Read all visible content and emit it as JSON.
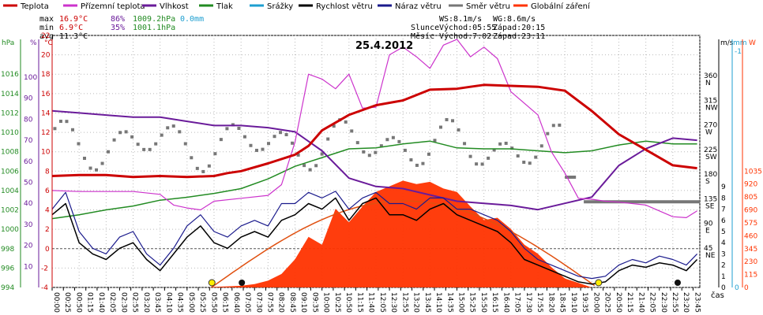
{
  "chart_data": {
    "type": "line",
    "title": "25.4.2012",
    "legend": [
      {
        "name": "Teplota",
        "color": "#cc0000"
      },
      {
        "name": "Přízemní teplota",
        "color": "#cc33cc"
      },
      {
        "name": "Vlhkost",
        "color": "#6a1b9a"
      },
      {
        "name": "Tlak",
        "color": "#228b22"
      },
      {
        "name": "Srážky",
        "color": "#1e9fd0"
      },
      {
        "name": "Rychlost větru",
        "color": "#000000"
      },
      {
        "name": "Náraz větru",
        "color": "#1a1a8c"
      },
      {
        "name": "Směr větru",
        "color": "#777777"
      },
      {
        "name": "Globální záření",
        "color": "#ff3300"
      }
    ],
    "stats": {
      "max_label": "max",
      "min_label": "min",
      "avg_label": "avg",
      "max_t": "16.9°C",
      "max_h": "86%",
      "max_p": "1009.2hPa",
      "max_r": "0.0mm",
      "min_t": "6.9°C",
      "min_h": "35%",
      "min_p": "1001.1hPa",
      "avg_t": "11.3°C"
    },
    "info": {
      "ws": "WS:8.1m/s",
      "wg": "WG:8.6m/s",
      "sun_label": "Slunce",
      "sunrise": "Východ:05:55",
      "sunset": "Západ:20:15",
      "moon_label": "Měsíc",
      "moonrise": "Východ:7:02",
      "moonset": "Západ:23:11"
    },
    "axes": {
      "hPa_label": "hPa",
      "pct_label": "%",
      "c_label": "°C",
      "ms_label": "m/s",
      "mm_label": "mm",
      "w_label": "W",
      "x_label": "čas",
      "hpa_ticks": [
        994,
        996,
        998,
        1000,
        1002,
        1004,
        1006,
        1008,
        1010,
        1012,
        1014,
        1016
      ],
      "pct_ticks": [
        10,
        20,
        30,
        40,
        50,
        60,
        70,
        80,
        90,
        100
      ],
      "c_ticks": [
        -4,
        -2,
        0,
        2,
        4,
        6,
        8,
        10,
        12,
        14,
        16,
        18,
        20,
        22
      ],
      "dir_ticks": [
        {
          "deg": "360",
          "lbl": "N"
        },
        {
          "deg": "315",
          "lbl": "NW"
        },
        {
          "deg": "270",
          "lbl": "W"
        },
        {
          "deg": "225",
          "lbl": "SW"
        },
        {
          "deg": "180",
          "lbl": "S"
        },
        {
          "deg": "135",
          "lbl": "SE"
        },
        {
          "deg": "90",
          "lbl": "E"
        },
        {
          "deg": "45",
          "lbl": "NE"
        }
      ],
      "ms_ticks": [
        0,
        1,
        2,
        3,
        4,
        5,
        6,
        7,
        8,
        9
      ],
      "mm_ticks": [
        "0",
        "-1"
      ],
      "w_ticks": [
        0,
        115,
        230,
        345,
        460,
        575,
        690,
        805,
        920,
        1035
      ],
      "x_ticks": [
        "00:00",
        "00:25",
        "00:50",
        "01:15",
        "01:40",
        "02:05",
        "02:30",
        "02:55",
        "03:20",
        "03:45",
        "04:10",
        "04:35",
        "05:00",
        "05:25",
        "05:50",
        "06:15",
        "06:40",
        "07:05",
        "07:30",
        "07:55",
        "08:20",
        "08:45",
        "09:10",
        "09:35",
        "10:00",
        "10:25",
        "10:50",
        "11:15",
        "11:40",
        "12:05",
        "12:30",
        "12:55",
        "13:20",
        "13:45",
        "14:10",
        "14:35",
        "15:00",
        "15:25",
        "15:50",
        "16:15",
        "16:40",
        "17:05",
        "17:30",
        "17:55",
        "18:20",
        "18:45",
        "19:10",
        "19:35",
        "20:00",
        "20:25",
        "20:50",
        "21:15",
        "21:40",
        "22:05",
        "22:30",
        "22:55",
        "23:20",
        "23:45"
      ]
    },
    "series": [
      {
        "name": "Teplota",
        "unit": "°C",
        "x": [
          0,
          1,
          2,
          3,
          4,
          5,
          6,
          6.5,
          7,
          8,
          9,
          9.5,
          10,
          11,
          12,
          13,
          14,
          15,
          15.5,
          16,
          17,
          18,
          19,
          20,
          21,
          22,
          23,
          23.9
        ],
        "y": [
          7.5,
          7.6,
          7.6,
          7.4,
          7.5,
          7.4,
          7.5,
          7.8,
          8.0,
          8.8,
          9.7,
          10.6,
          12.2,
          13.8,
          14.8,
          15.3,
          16.4,
          16.5,
          16.7,
          16.9,
          16.8,
          16.7,
          16.3,
          14.2,
          11.8,
          10.2,
          8.6,
          8.3
        ]
      },
      {
        "name": "Přízemní teplota",
        "unit": "°C",
        "x": [
          0,
          1,
          2,
          3,
          4,
          4.5,
          5,
          5.5,
          6,
          7,
          8,
          8.5,
          9,
          9.5,
          10,
          10.5,
          11,
          11.5,
          12,
          12.5,
          13,
          13.5,
          14,
          14.5,
          15,
          15.5,
          16,
          16.5,
          17,
          18,
          18.5,
          19,
          19.5,
          20,
          20.5,
          21,
          22,
          23,
          23.5,
          23.9
        ],
        "y": [
          6.0,
          5.9,
          5.9,
          5.9,
          5.6,
          4.5,
          4.2,
          4.0,
          4.9,
          5.2,
          5.5,
          6.6,
          11.0,
          18.0,
          17.5,
          16.5,
          18.0,
          14.5,
          14.6,
          20.0,
          20.8,
          19.8,
          18.6,
          21.0,
          21.6,
          19.8,
          20.8,
          19.6,
          16.2,
          13.8,
          10.0,
          7.8,
          5.2,
          5.1,
          4.9,
          4.8,
          4.5,
          3.3,
          3.2,
          3.9
        ]
      },
      {
        "name": "Vlhkost",
        "unit": "%",
        "x": [
          0,
          1,
          2,
          3,
          4,
          5,
          6,
          7,
          8,
          9,
          10,
          11,
          12,
          13,
          14,
          15,
          16,
          17,
          18,
          19,
          20,
          21,
          22,
          23,
          23.9
        ],
        "y": [
          84,
          83,
          82,
          81,
          81,
          79,
          77,
          77,
          76,
          74,
          65,
          52,
          48,
          47,
          44,
          41,
          40,
          39,
          37,
          40,
          43,
          58,
          66,
          71,
          70
        ]
      },
      {
        "name": "Tlak",
        "unit": "hPa",
        "x": [
          0,
          1,
          2,
          3,
          4,
          5,
          6,
          7,
          8,
          9,
          10,
          11,
          12,
          13,
          14,
          15,
          16,
          17,
          18,
          19,
          20,
          21,
          22,
          23,
          23.9
        ],
        "y": [
          1001.1,
          1001.5,
          1002.0,
          1002.4,
          1003.0,
          1003.3,
          1003.7,
          1004.2,
          1005.2,
          1006.5,
          1007.4,
          1008.3,
          1008.4,
          1008.8,
          1009.1,
          1008.4,
          1008.3,
          1008.3,
          1008.1,
          1007.9,
          1008.1,
          1008.7,
          1009.1,
          1008.8,
          1008.8
        ]
      },
      {
        "name": "Rychlost větru",
        "unit": "m/s",
        "x": [
          0,
          0.5,
          1,
          1.5,
          2,
          2.5,
          3,
          3.5,
          4,
          4.5,
          5,
          5.5,
          6,
          6.5,
          7,
          7.5,
          8,
          8.5,
          9,
          9.5,
          10,
          10.5,
          11,
          11.5,
          12,
          12.5,
          13,
          13.5,
          14,
          14.5,
          15,
          15.5,
          16,
          16.5,
          17,
          17.5,
          18,
          18.5,
          19,
          19.5,
          20,
          20.5,
          21,
          21.5,
          22,
          22.5,
          23,
          23.5,
          23.9
        ],
        "y": [
          6.5,
          7.5,
          4.0,
          3.0,
          2.5,
          3.5,
          4.0,
          2.5,
          1.5,
          3.0,
          4.5,
          5.5,
          4.0,
          3.5,
          4.5,
          5.0,
          4.5,
          6.0,
          6.5,
          7.5,
          7.0,
          8.0,
          6.0,
          7.5,
          8.0,
          6.5,
          6.5,
          6.0,
          7.0,
          7.5,
          6.5,
          6.0,
          5.5,
          5.0,
          4.0,
          2.5,
          2.0,
          1.5,
          1.0,
          0.5,
          0.3,
          0.5,
          1.5,
          2.0,
          1.8,
          2.2,
          2.0,
          1.5,
          2.5
        ]
      },
      {
        "name": "Náraz větru",
        "unit": "m/s",
        "x": [
          0,
          0.5,
          1,
          1.5,
          2,
          2.5,
          3,
          3.5,
          4,
          4.5,
          5,
          5.5,
          6,
          6.5,
          7,
          7.5,
          8,
          8.5,
          9,
          9.5,
          10,
          10.5,
          11,
          11.5,
          12,
          12.5,
          13,
          13.5,
          14,
          14.5,
          15,
          15.5,
          16,
          16.5,
          17,
          17.5,
          18,
          18.5,
          19,
          19.5,
          20,
          20.5,
          21,
          21.5,
          22,
          22.5,
          23,
          23.5,
          23.9
        ],
        "y": [
          7.0,
          8.5,
          5.0,
          3.5,
          3.0,
          4.5,
          5.0,
          3.0,
          2.0,
          3.5,
          5.5,
          6.5,
          5.0,
          4.5,
          5.5,
          6.0,
          5.5,
          7.5,
          7.5,
          8.5,
          8.0,
          8.6,
          7.0,
          8.0,
          8.5,
          7.5,
          7.5,
          7.0,
          8.0,
          8.0,
          7.0,
          7.0,
          6.5,
          6.0,
          5.0,
          3.5,
          2.5,
          2.0,
          1.5,
          1.0,
          0.8,
          1.0,
          2.0,
          2.5,
          2.2,
          2.8,
          2.5,
          2.0,
          3.0
        ]
      },
      {
        "name": "Globální záření",
        "unit": "W",
        "x": [
          0,
          5.8,
          6,
          6.5,
          7,
          7.5,
          8,
          8.5,
          9,
          9.5,
          10,
          10.5,
          11,
          11.5,
          12,
          12.5,
          13,
          13.5,
          14,
          14.5,
          15,
          15.5,
          16,
          16.5,
          17,
          17.5,
          18,
          18.5,
          19,
          19.5,
          20,
          24
        ],
        "y": [
          0,
          0,
          5,
          10,
          15,
          30,
          60,
          120,
          250,
          450,
          380,
          700,
          580,
          720,
          850,
          900,
          950,
          920,
          940,
          880,
          850,
          720,
          600,
          620,
          520,
          380,
          300,
          180,
          80,
          40,
          0,
          0
        ]
      }
    ]
  }
}
